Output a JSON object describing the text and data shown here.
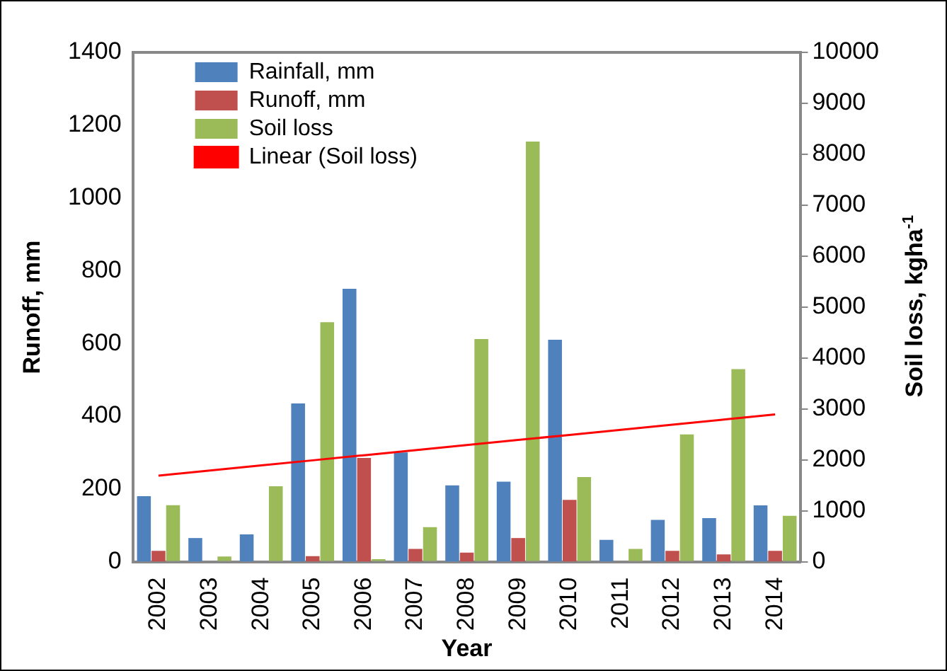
{
  "chart_data": {
    "type": "bar",
    "xlabel": "Year",
    "ylabel": "Runoff, mm",
    "y2label": "Soil loss, kgha$^{-1}$",
    "categories": [
      "2002",
      "2003",
      "2004",
      "2005",
      "2006",
      "2007",
      "2008",
      "2009",
      "2010",
      "2011",
      "2012",
      "2013",
      "2014"
    ],
    "series": [
      {
        "name": "Rainfall, mm",
        "color": "#4f81bd",
        "values": [
          180,
          65,
          75,
          435,
          750,
          300,
          210,
          220,
          610,
          60,
          115,
          120,
          155
        ]
      },
      {
        "name": "Runoff, mm",
        "color": "#c0504d",
        "values": [
          30,
          0,
          0,
          15,
          285,
          35,
          25,
          65,
          170,
          0,
          30,
          20,
          30
        ]
      },
      {
        "name": "Soil loss",
        "color": "#9bbb59",
        "axis": "y2",
        "values": [
          1110,
          100,
          1480,
          4700,
          50,
          680,
          4370,
          8250,
          1660,
          250,
          2500,
          3780,
          900
        ]
      },
      {
        "name": "Linear (Soil loss)",
        "color": "#ff0000",
        "type": "line",
        "axis": "y2",
        "marker": "none",
        "values": [
          1690,
          1790,
          1890,
          1990,
          2090,
          2190,
          2290,
          2390,
          2490,
          2590,
          2690,
          2790,
          2890
        ]
      }
    ],
    "ylim": [
      0,
      1400
    ],
    "yticks": [
      0,
      200,
      400,
      600,
      800,
      1000,
      1200,
      1400
    ],
    "y2lim": [
      0,
      10000
    ],
    "y2ticks": [
      0,
      1000,
      2000,
      3000,
      4000,
      5000,
      6000,
      7000,
      8000,
      9000,
      10000
    ],
    "grid": false,
    "legend": "top left"
  }
}
